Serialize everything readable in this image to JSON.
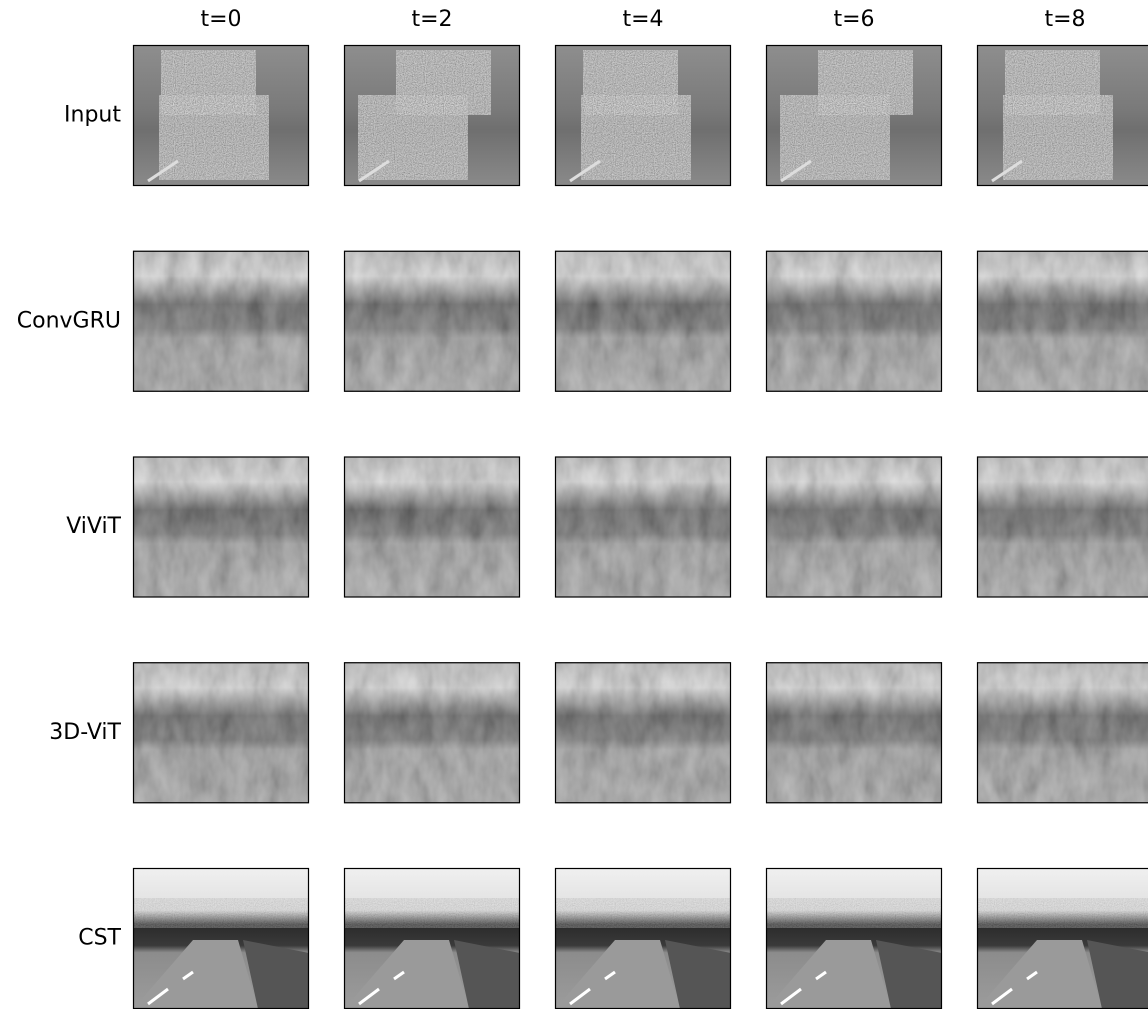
{
  "columns": [
    "t=0",
    "t=2",
    "t=4",
    "t=6",
    "t=8"
  ],
  "rows": [
    "Input",
    "ConvGRU",
    "ViViT",
    "3D-ViT",
    "CST"
  ]
}
